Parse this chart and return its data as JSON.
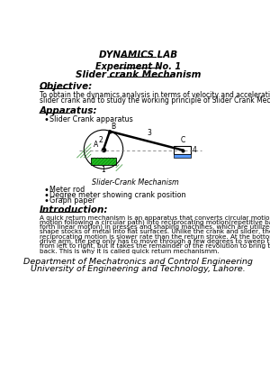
{
  "title": "DYNAMICS LAB",
  "exp_line": "Experiment No. 1",
  "subtitle": "Slider crank Mechanism",
  "objective_header": "Objective:",
  "objective_text": "To obtain the dynamics analysis in terms of velocity and acceleration of the\nslider crank and to study the working principle of Slider Crank Mechanism_",
  "apparatus_header": "Apparatus:",
  "apparatus_items": [
    "Slider Crank apparatus"
  ],
  "diagram_caption": "Slider-Crank Mechanism",
  "more_items": [
    "Meter rod",
    "Degree meter showing crank position",
    "Graph paper"
  ],
  "intro_header": "Introduction:",
  "intro_text": "A quick return mechanism is an apparatus that converts circular motion(rotating\nmotion following a circular path) into reciprocating motion(repetitive back-and-\nforth linear motion) in presses and shaping machines, which are utilized to\nshape stocks of metal into flat surfaces. Unlike the crank and slider, the forward\nreciprocating motion is slower rate than the return stroke. At the bottom of the\ndrive arm, the peg only has to move through a few degrees to sweep the arm\nfrom left to right, but it takes the remainder of the revolution to bring the arm\nback. This is why it is called quick return mechanismm.",
  "footer_line1": "Department of Mechatronics and Control Engineering",
  "footer_line2": "University of Engineering and Technology, Lahore.",
  "bg_color": "#ffffff"
}
